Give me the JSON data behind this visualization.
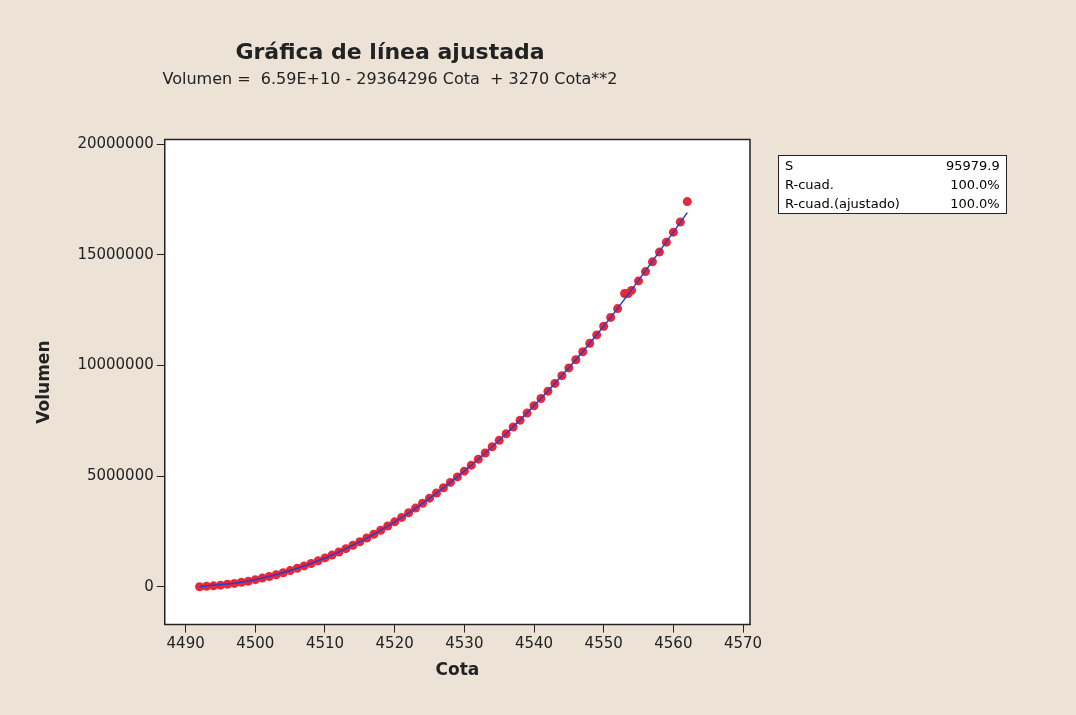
{
  "chart_data": {
    "type": "scatter",
    "title": "Gráfica de línea ajustada",
    "subtitle": "Volumen =  6.59E+10 - 29364296 Cota  + 3270 Cota**2",
    "xlabel": "Cota",
    "ylabel": "Volumen",
    "xlim": [
      4487,
      4571
    ],
    "xticks": [
      4490,
      4500,
      4510,
      4520,
      4530,
      4540,
      4550,
      4560,
      4570
    ],
    "ylim": [
      -1700000,
      20200000
    ],
    "yticks": [
      0,
      5000000,
      10000000,
      15000000,
      20000000
    ],
    "legend": false,
    "marker": "circle",
    "annotations": [
      "S",
      "95979.9",
      "R-cuad.",
      "100.0%",
      "R-cuad.(ajustado)",
      "100.0%"
    ],
    "series": [
      {
        "color": "#e8283a",
        "x": [
          4492,
          4493,
          4494,
          4495,
          4496,
          4497,
          4498,
          4499,
          4500,
          4501,
          4502,
          4503,
          4504,
          4505,
          4506,
          4507,
          4508,
          4509,
          4510,
          4511,
          4512,
          4513,
          4514,
          4515,
          4516,
          4517,
          4518,
          4519,
          4520,
          4521,
          4522,
          4523,
          4524,
          4525,
          4526,
          4527,
          4528,
          4529,
          4530,
          4531,
          4532,
          4533,
          4534,
          4535,
          4536,
          4537,
          4538,
          4539,
          4540,
          4541,
          4542,
          4543,
          4544,
          4545,
          4546,
          4547,
          4548,
          4549,
          4550,
          4551,
          4552,
          4553,
          4553.5,
          4554,
          4555,
          4556,
          4557,
          4558,
          4559,
          4560,
          4561,
          4562
        ],
        "values": [
          10000,
          30000,
          50000,
          80000,
          120000,
          160000,
          210000,
          260000,
          330000,
          400000,
          470000,
          550000,
          640000,
          740000,
          840000,
          950000,
          1060000,
          1180000,
          1310000,
          1440000,
          1580000,
          1730000,
          1880000,
          2040000,
          2210000,
          2380000,
          2560000,
          2750000,
          2940000,
          3140000,
          3350000,
          3560000,
          3780000,
          4010000,
          4240000,
          4480000,
          4720000,
          4970000,
          5230000,
          5500000,
          5770000,
          6050000,
          6330000,
          6620000,
          6920000,
          7220000,
          7530000,
          7850000,
          8180000,
          8510000,
          8840000,
          9190000,
          9540000,
          9890000,
          10260000,
          10620000,
          11000000,
          11380000,
          11770000,
          12170000,
          12570000,
          13250000,
          13250000,
          13390000,
          13820000,
          14240000,
          14680000,
          15120000,
          15570000,
          16020000,
          16480000,
          17400000
        ]
      },
      {
        "type": "line",
        "color": "#2a3fbf",
        "marker": "none",
        "line_style": "solid",
        "x": [
          4492,
          4500,
          4510,
          4520,
          4530,
          4540,
          4550,
          4560,
          4562
        ],
        "values": [
          10000,
          330000,
          1310000,
          2940000,
          5230000,
          8180000,
          11770000,
          16020000,
          16900000
        ]
      }
    ]
  }
}
